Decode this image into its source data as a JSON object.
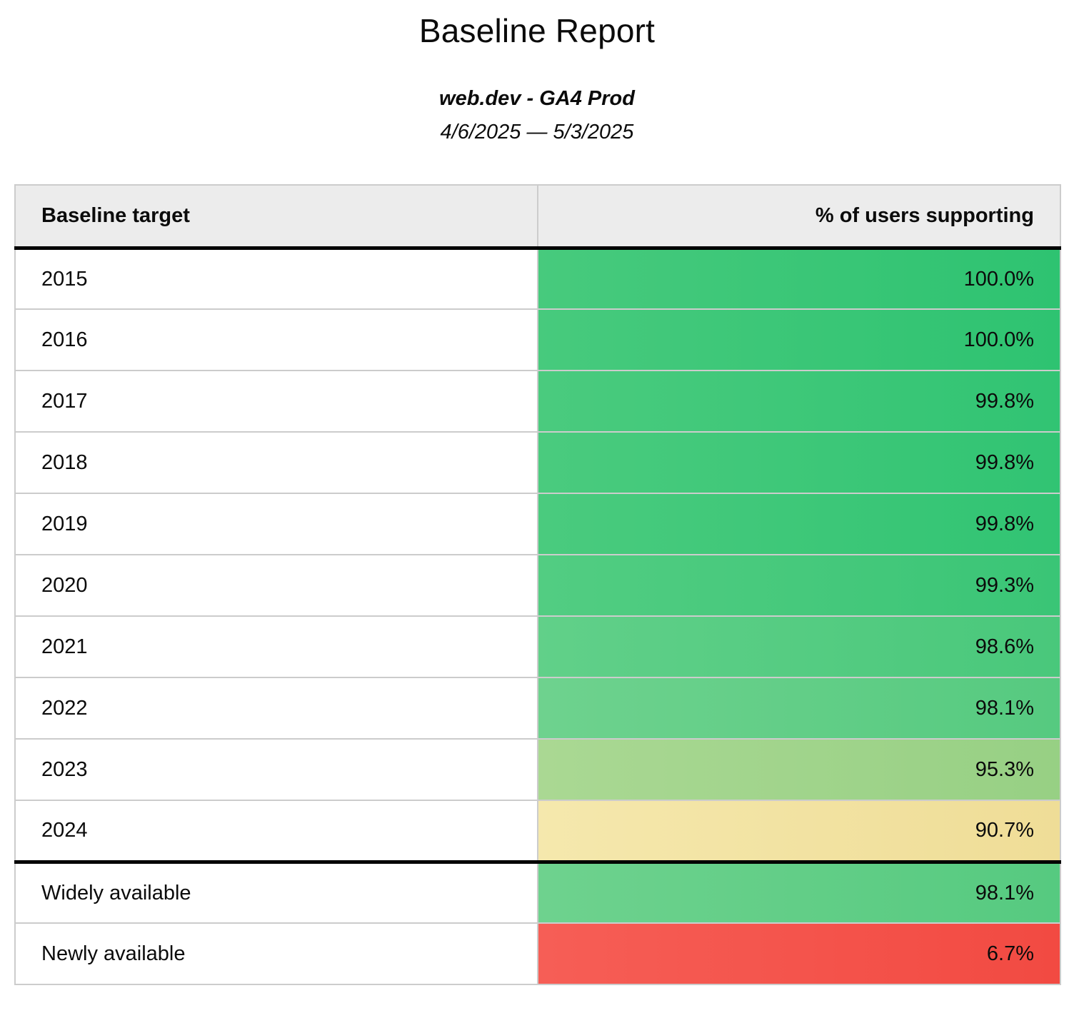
{
  "report": {
    "title": "Baseline Report",
    "subtitle": "web.dev - GA4 Prod",
    "date_range": "4/6/2025 — 5/3/2025"
  },
  "table": {
    "columns": [
      "Baseline target",
      "% of users supporting"
    ],
    "rows": [
      {
        "target": "2015",
        "value": "100.0%",
        "bg_left": "#47ca7d",
        "bg_right": "#2ec371",
        "group_end": false
      },
      {
        "target": "2016",
        "value": "100.0%",
        "bg_left": "#47ca7d",
        "bg_right": "#2ec371",
        "group_end": false
      },
      {
        "target": "2017",
        "value": "99.8%",
        "bg_left": "#4acb7e",
        "bg_right": "#31c473",
        "group_end": false
      },
      {
        "target": "2018",
        "value": "99.8%",
        "bg_left": "#4acb7e",
        "bg_right": "#31c473",
        "group_end": false
      },
      {
        "target": "2019",
        "value": "99.8%",
        "bg_left": "#4acb7e",
        "bg_right": "#31c473",
        "group_end": false
      },
      {
        "target": "2020",
        "value": "99.3%",
        "bg_left": "#52cd82",
        "bg_right": "#3ac576",
        "group_end": false
      },
      {
        "target": "2021",
        "value": "98.6%",
        "bg_left": "#61d089",
        "bg_right": "#49c87b",
        "group_end": false
      },
      {
        "target": "2022",
        "value": "98.1%",
        "bg_left": "#6ed28e",
        "bg_right": "#56ca80",
        "group_end": false
      },
      {
        "target": "2023",
        "value": "95.3%",
        "bg_left": "#aad893",
        "bg_right": "#97d084",
        "group_end": false
      },
      {
        "target": "2024",
        "value": "90.7%",
        "bg_left": "#f5e8ad",
        "bg_right": "#efdd97",
        "group_end": true
      },
      {
        "target": "Widely available",
        "value": "98.1%",
        "bg_left": "#6ed28e",
        "bg_right": "#56ca80",
        "group_end": false
      },
      {
        "target": "Newly available",
        "value": "6.7%",
        "bg_left": "#f65e56",
        "bg_right": "#f24a42",
        "group_end": false
      }
    ]
  },
  "colors": {
    "header_bg": "#ececec",
    "grid_border": "#cccccc",
    "section_border": "#000000",
    "scale_high_green": "#34c674",
    "scale_mid_yellow": "#f2e3a2",
    "scale_low_red": "#f4544c"
  },
  "chart_data": {
    "type": "table",
    "title": "Baseline Report",
    "subtitle": "web.dev - GA4 Prod",
    "date_range": "4/6/2025 — 5/3/2025",
    "columns": [
      "Baseline target",
      "% of users supporting"
    ],
    "categories": [
      "2015",
      "2016",
      "2017",
      "2018",
      "2019",
      "2020",
      "2021",
      "2022",
      "2023",
      "2024",
      "Widely available",
      "Newly available"
    ],
    "values": [
      100.0,
      100.0,
      99.8,
      99.8,
      99.8,
      99.3,
      98.6,
      98.1,
      95.3,
      90.7,
      98.1,
      6.7
    ],
    "value_unit": "%",
    "layout_hints": {
      "value_column_alignment": "right",
      "color_scale": "green (high) to yellow (mid) to red (low) heatmap on value column",
      "thick_divider_after_rows": [
        "header",
        "2024"
      ]
    }
  }
}
